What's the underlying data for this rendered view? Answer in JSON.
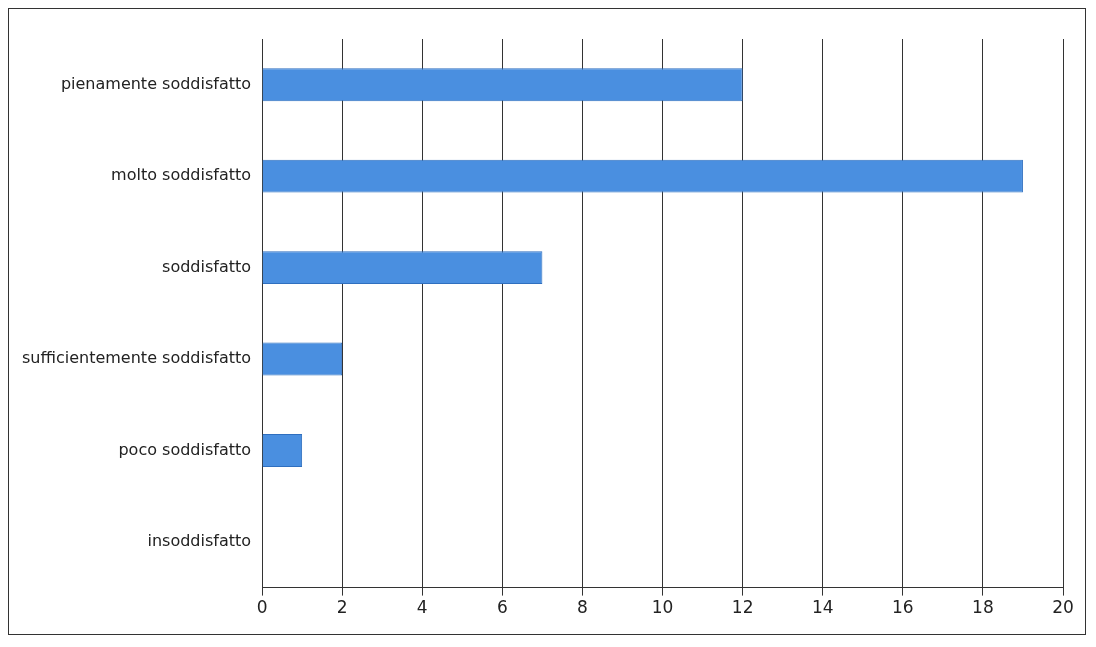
{
  "chart_data": {
    "type": "bar",
    "orientation": "horizontal",
    "categories": [
      "pienamente soddisfatto",
      "molto soddisfatto",
      "soddisfatto",
      "sufficientemente soddisfatto",
      "poco soddisfatto",
      "insoddisfatto"
    ],
    "values": [
      12,
      19,
      7,
      2,
      1,
      0
    ],
    "color": "#4a8fe0",
    "xlim": [
      0,
      20
    ],
    "xticks": [
      0,
      2,
      4,
      6,
      8,
      10,
      12,
      14,
      16,
      18,
      20
    ],
    "grid": "x",
    "legend": false
  }
}
